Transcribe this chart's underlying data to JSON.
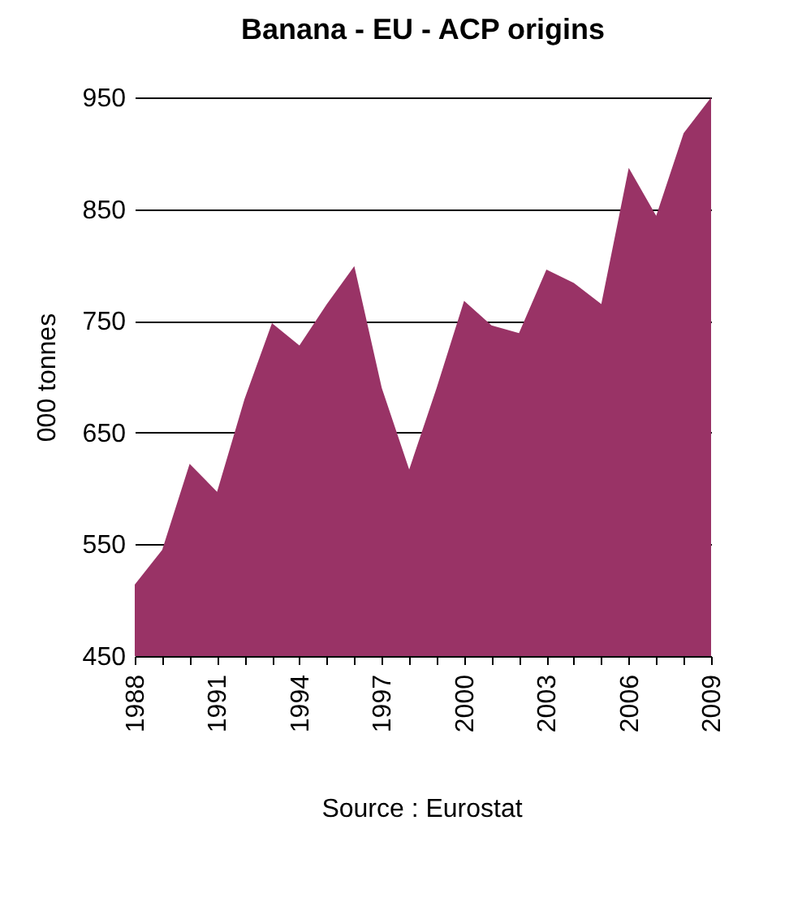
{
  "chart_data": {
    "type": "area",
    "title": "Banana - EU - ACP origins",
    "ylabel": "000 tonnes",
    "annotations": [
      "Source : Eurostat"
    ],
    "x": [
      1988,
      1989,
      1990,
      1991,
      1992,
      1993,
      1994,
      1995,
      1996,
      1997,
      1998,
      1999,
      2000,
      2001,
      2002,
      2003,
      2004,
      2005,
      2006,
      2007,
      2008,
      2009
    ],
    "series": [
      {
        "color": "#993366",
        "values": [
          514,
          545,
          622,
          597,
          680,
          748,
          728,
          765,
          799,
          690,
          617,
          690,
          768,
          746,
          739,
          796,
          784,
          765,
          887,
          844,
          918,
          950
        ]
      }
    ],
    "xlim": [
      1988,
      2009
    ],
    "xticks": [
      1988,
      {
        "value": 1989,
        "label": null
      },
      {
        "value": 1990,
        "label": null
      },
      1991,
      {
        "value": 1992,
        "label": null
      },
      {
        "value": 1993,
        "label": null
      },
      1994,
      {
        "value": 1995,
        "label": null
      },
      {
        "value": 1996,
        "label": null
      },
      1997,
      {
        "value": 1998,
        "label": null
      },
      {
        "value": 1999,
        "label": null
      },
      2000,
      {
        "value": 2001,
        "label": null
      },
      {
        "value": 2002,
        "label": null
      },
      2003,
      {
        "value": 2004,
        "label": null
      },
      {
        "value": 2005,
        "label": null
      },
      2006,
      {
        "value": 2007,
        "label": null
      },
      {
        "value": 2008,
        "label": null
      },
      2009
    ],
    "ylim": [
      450,
      950
    ],
    "yticks": [
      450,
      550,
      650,
      750,
      850,
      950
    ],
    "grid": "y",
    "legend": false
  }
}
